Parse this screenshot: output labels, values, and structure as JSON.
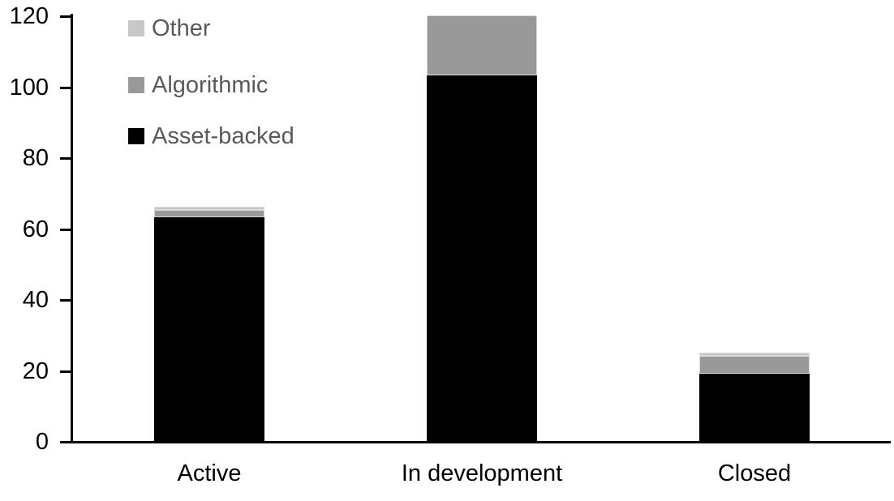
{
  "chart_data": {
    "type": "bar",
    "subtype": "stacked-vertical",
    "title": "",
    "xlabel": "",
    "ylabel": "",
    "categories": [
      "Active",
      "In development",
      "Closed"
    ],
    "series": [
      {
        "name": "Other",
        "color": "#c8c8c8",
        "values": [
          1,
          0,
          1
        ]
      },
      {
        "name": "Algorithmic",
        "color": "#999999",
        "values": [
          2,
          17,
          5
        ]
      },
      {
        "name": "Asset-backed",
        "color": "#000000",
        "values": [
          63,
          103,
          19
        ]
      }
    ],
    "stack_order_bottom_to_top": [
      "Asset-backed",
      "Algorithmic",
      "Other"
    ],
    "totals": [
      66,
      120,
      25
    ],
    "ylim": [
      0,
      120
    ],
    "yticks": [
      0,
      20,
      40,
      60,
      80,
      100,
      120
    ],
    "grid": "off",
    "legend_position": "top-left-inside",
    "axis_color": "#000000",
    "legend_text_color": "#595959",
    "background_color": "#ffffff"
  }
}
